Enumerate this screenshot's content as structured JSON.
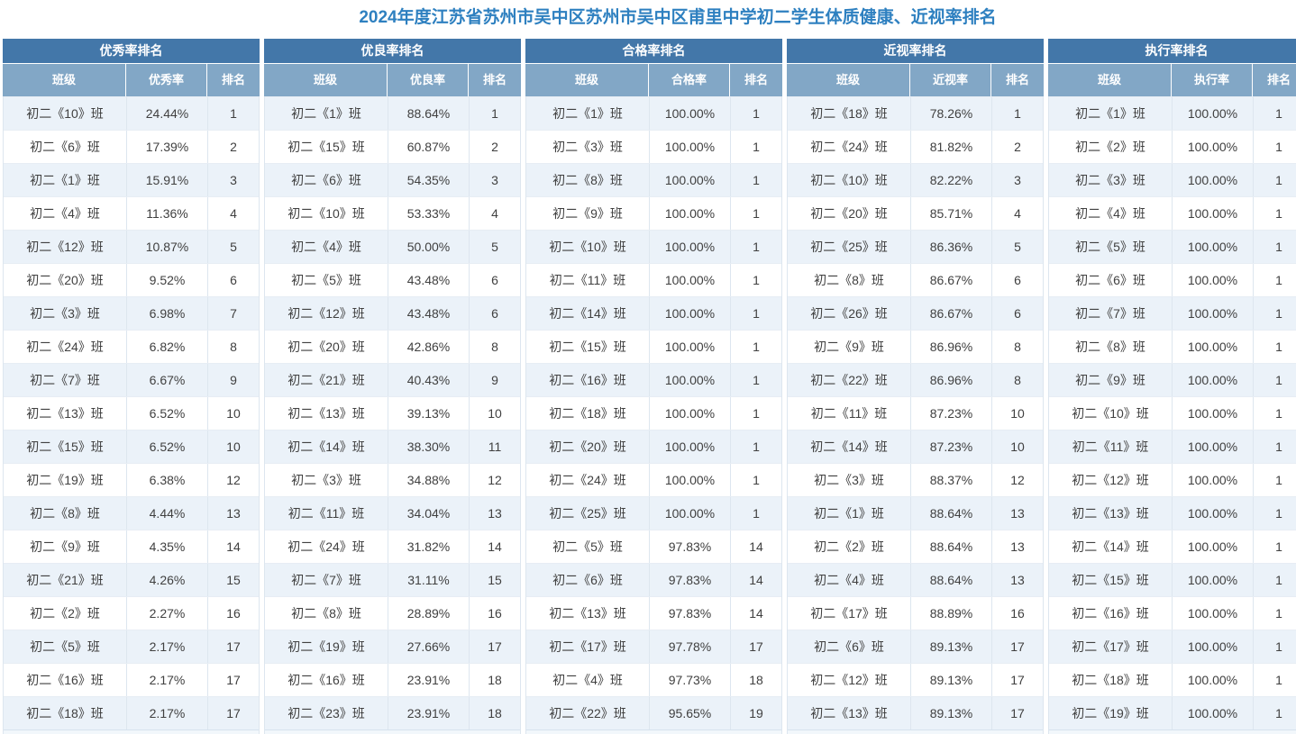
{
  "page": {
    "title": "2024年度江苏省苏州市吴中区苏州市吴中区甫里中学初二学生体质健康、近视率排名"
  },
  "colors": {
    "page_title_text": "#2E80C0",
    "table_title_bar_bg": "#4377A9",
    "column_header_bg": "#82A7C6",
    "row_stripe_bg": "#EBF2F9",
    "row_bg": "#FFFFFF",
    "border": "#DDE6EF",
    "cell_text": "#404040"
  },
  "chart_data": [
    {
      "type": "table",
      "title": "优秀率排名",
      "columns": [
        "班级",
        "优秀率",
        "排名"
      ],
      "rows": [
        [
          "初二《10》班",
          "24.44%",
          "1"
        ],
        [
          "初二《6》班",
          "17.39%",
          "2"
        ],
        [
          "初二《1》班",
          "15.91%",
          "3"
        ],
        [
          "初二《4》班",
          "11.36%",
          "4"
        ],
        [
          "初二《12》班",
          "10.87%",
          "5"
        ],
        [
          "初二《20》班",
          "9.52%",
          "6"
        ],
        [
          "初二《3》班",
          "6.98%",
          "7"
        ],
        [
          "初二《24》班",
          "6.82%",
          "8"
        ],
        [
          "初二《7》班",
          "6.67%",
          "9"
        ],
        [
          "初二《13》班",
          "6.52%",
          "10"
        ],
        [
          "初二《15》班",
          "6.52%",
          "10"
        ],
        [
          "初二《19》班",
          "6.38%",
          "12"
        ],
        [
          "初二《8》班",
          "4.44%",
          "13"
        ],
        [
          "初二《9》班",
          "4.35%",
          "14"
        ],
        [
          "初二《21》班",
          "4.26%",
          "15"
        ],
        [
          "初二《2》班",
          "2.27%",
          "16"
        ],
        [
          "初二《5》班",
          "2.17%",
          "17"
        ],
        [
          "初二《16》班",
          "2.17%",
          "17"
        ],
        [
          "初二《18》班",
          "2.17%",
          "17"
        ]
      ]
    },
    {
      "type": "table",
      "title": "优良率排名",
      "columns": [
        "班级",
        "优良率",
        "排名"
      ],
      "rows": [
        [
          "初二《1》班",
          "88.64%",
          "1"
        ],
        [
          "初二《15》班",
          "60.87%",
          "2"
        ],
        [
          "初二《6》班",
          "54.35%",
          "3"
        ],
        [
          "初二《10》班",
          "53.33%",
          "4"
        ],
        [
          "初二《4》班",
          "50.00%",
          "5"
        ],
        [
          "初二《5》班",
          "43.48%",
          "6"
        ],
        [
          "初二《12》班",
          "43.48%",
          "6"
        ],
        [
          "初二《20》班",
          "42.86%",
          "8"
        ],
        [
          "初二《21》班",
          "40.43%",
          "9"
        ],
        [
          "初二《13》班",
          "39.13%",
          "10"
        ],
        [
          "初二《14》班",
          "38.30%",
          "11"
        ],
        [
          "初二《3》班",
          "34.88%",
          "12"
        ],
        [
          "初二《11》班",
          "34.04%",
          "13"
        ],
        [
          "初二《24》班",
          "31.82%",
          "14"
        ],
        [
          "初二《7》班",
          "31.11%",
          "15"
        ],
        [
          "初二《8》班",
          "28.89%",
          "16"
        ],
        [
          "初二《19》班",
          "27.66%",
          "17"
        ],
        [
          "初二《16》班",
          "23.91%",
          "18"
        ],
        [
          "初二《23》班",
          "23.91%",
          "18"
        ]
      ]
    },
    {
      "type": "table",
      "title": "合格率排名",
      "columns": [
        "班级",
        "合格率",
        "排名"
      ],
      "rows": [
        [
          "初二《1》班",
          "100.00%",
          "1"
        ],
        [
          "初二《3》班",
          "100.00%",
          "1"
        ],
        [
          "初二《8》班",
          "100.00%",
          "1"
        ],
        [
          "初二《9》班",
          "100.00%",
          "1"
        ],
        [
          "初二《10》班",
          "100.00%",
          "1"
        ],
        [
          "初二《11》班",
          "100.00%",
          "1"
        ],
        [
          "初二《14》班",
          "100.00%",
          "1"
        ],
        [
          "初二《15》班",
          "100.00%",
          "1"
        ],
        [
          "初二《16》班",
          "100.00%",
          "1"
        ],
        [
          "初二《18》班",
          "100.00%",
          "1"
        ],
        [
          "初二《20》班",
          "100.00%",
          "1"
        ],
        [
          "初二《24》班",
          "100.00%",
          "1"
        ],
        [
          "初二《25》班",
          "100.00%",
          "1"
        ],
        [
          "初二《5》班",
          "97.83%",
          "14"
        ],
        [
          "初二《6》班",
          "97.83%",
          "14"
        ],
        [
          "初二《13》班",
          "97.83%",
          "14"
        ],
        [
          "初二《17》班",
          "97.78%",
          "17"
        ],
        [
          "初二《4》班",
          "97.73%",
          "18"
        ],
        [
          "初二《22》班",
          "95.65%",
          "19"
        ]
      ]
    },
    {
      "type": "table",
      "title": "近视率排名",
      "columns": [
        "班级",
        "近视率",
        "排名"
      ],
      "rows": [
        [
          "初二《18》班",
          "78.26%",
          "1"
        ],
        [
          "初二《24》班",
          "81.82%",
          "2"
        ],
        [
          "初二《10》班",
          "82.22%",
          "3"
        ],
        [
          "初二《20》班",
          "85.71%",
          "4"
        ],
        [
          "初二《25》班",
          "86.36%",
          "5"
        ],
        [
          "初二《8》班",
          "86.67%",
          "6"
        ],
        [
          "初二《26》班",
          "86.67%",
          "6"
        ],
        [
          "初二《9》班",
          "86.96%",
          "8"
        ],
        [
          "初二《22》班",
          "86.96%",
          "8"
        ],
        [
          "初二《11》班",
          "87.23%",
          "10"
        ],
        [
          "初二《14》班",
          "87.23%",
          "10"
        ],
        [
          "初二《3》班",
          "88.37%",
          "12"
        ],
        [
          "初二《1》班",
          "88.64%",
          "13"
        ],
        [
          "初二《2》班",
          "88.64%",
          "13"
        ],
        [
          "初二《4》班",
          "88.64%",
          "13"
        ],
        [
          "初二《17》班",
          "88.89%",
          "16"
        ],
        [
          "初二《6》班",
          "89.13%",
          "17"
        ],
        [
          "初二《12》班",
          "89.13%",
          "17"
        ],
        [
          "初二《13》班",
          "89.13%",
          "17"
        ]
      ]
    },
    {
      "type": "table",
      "title": "执行率排名",
      "columns": [
        "班级",
        "执行率",
        "排名"
      ],
      "rows": [
        [
          "初二《1》班",
          "100.00%",
          "1"
        ],
        [
          "初二《2》班",
          "100.00%",
          "1"
        ],
        [
          "初二《3》班",
          "100.00%",
          "1"
        ],
        [
          "初二《4》班",
          "100.00%",
          "1"
        ],
        [
          "初二《5》班",
          "100.00%",
          "1"
        ],
        [
          "初二《6》班",
          "100.00%",
          "1"
        ],
        [
          "初二《7》班",
          "100.00%",
          "1"
        ],
        [
          "初二《8》班",
          "100.00%",
          "1"
        ],
        [
          "初二《9》班",
          "100.00%",
          "1"
        ],
        [
          "初二《10》班",
          "100.00%",
          "1"
        ],
        [
          "初二《11》班",
          "100.00%",
          "1"
        ],
        [
          "初二《12》班",
          "100.00%",
          "1"
        ],
        [
          "初二《13》班",
          "100.00%",
          "1"
        ],
        [
          "初二《14》班",
          "100.00%",
          "1"
        ],
        [
          "初二《15》班",
          "100.00%",
          "1"
        ],
        [
          "初二《16》班",
          "100.00%",
          "1"
        ],
        [
          "初二《17》班",
          "100.00%",
          "1"
        ],
        [
          "初二《18》班",
          "100.00%",
          "1"
        ],
        [
          "初二《19》班",
          "100.00%",
          "1"
        ]
      ]
    }
  ]
}
